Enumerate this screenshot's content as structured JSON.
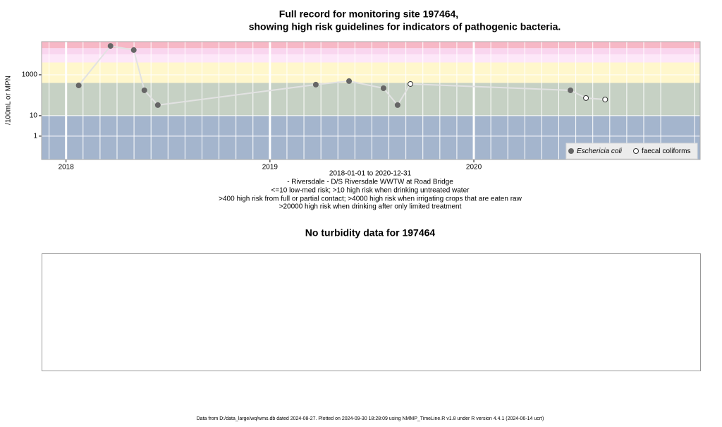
{
  "chart_data": {
    "type": "scatter",
    "title": [
      "Full record for monitoring site 197464,",
      "showing high risk guidelines for indicators of pathogenic bacteria."
    ],
    "y_label": "/100mL or MPN",
    "x_caption": [
      "2018-01-01 to 2020-12-31",
      "- Riversdale - D/S Riversdale WWTW at Road Bridge",
      "<=10 low-med risk; >10 high risk when drinking untreated water",
      ">400 high risk from full or partial contact; >4000 high risk when irrigating crops that are eaten raw",
      ">20000 high risk when drinking after only limited treatment"
    ],
    "log_y": true,
    "ylim": [
      0.072,
      41700
    ],
    "yticks": [
      1,
      10,
      1000
    ],
    "xlim": [
      2017.88,
      2021.11
    ],
    "xticks": [
      2018,
      2019,
      2020
    ],
    "bands": [
      {
        "from": 0.072,
        "to": 10,
        "color": "#a4b5cd"
      },
      {
        "from": 10,
        "to": 400,
        "color": "#c6d1c4"
      },
      {
        "from": 400,
        "to": 4000,
        "color": "#fff7cc"
      },
      {
        "from": 4000,
        "to": 10000,
        "color": "#fde7f8"
      },
      {
        "from": 10000,
        "to": 20000,
        "color": "#f9d6ef"
      },
      {
        "from": 20000,
        "to": 41700,
        "color": "#f7b8c6"
      }
    ],
    "line_color": "#e2e2e2",
    "series": [
      {
        "name": "Eschericia coli",
        "color": "#666666",
        "filled": true,
        "x": [
          2018.062,
          2018.218,
          2018.332,
          2018.384,
          2018.45,
          2019.225,
          2019.388,
          2019.557,
          2019.626,
          2020.474
        ],
        "values": [
          302,
          25700,
          16200,
          174,
          33,
          330,
          490,
          220,
          33,
          174
        ]
      },
      {
        "name": "faecal coliforms",
        "color": "#333333",
        "filled": false,
        "x": [
          2019.689,
          2020.55,
          2020.644
        ],
        "values": [
          355,
          73,
          62
        ]
      }
    ]
  },
  "turbidity": {
    "title": "No turbidity data for 197464"
  },
  "footer": "Data from D:/data_large/wq/wms.db dated 2024-08-27. Plotted on 2024-09-30 18:28:09 using NMMP_TimeLine.R v1.8 under R version 4.4.1 (2024-06-14 ucrt)"
}
